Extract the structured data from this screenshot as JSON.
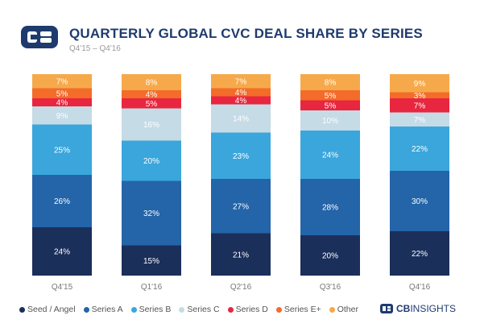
{
  "header": {
    "title": "QUARTERLY GLOBAL CVC DEAL SHARE BY SERIES",
    "subtitle": "Q4'15 – Q4'16",
    "logo_icon": "cb-insights-logo-icon"
  },
  "brand": {
    "prefix": "CB",
    "name": "INSIGHTS"
  },
  "colors": {
    "seed_angel": "#1b2f5b",
    "series_a": "#2464a8",
    "series_b": "#3aa6dc",
    "series_c": "#c5dbe6",
    "series_d": "#e8263f",
    "series_e_plus": "#f36c2a",
    "other": "#f6a94a"
  },
  "chart_data": {
    "type": "bar",
    "stacked": true,
    "title": "QUARTERLY GLOBAL CVC DEAL SHARE BY SERIES",
    "subtitle": "Q4'15 – Q4'16",
    "categories": [
      "Q4'15",
      "Q1'16",
      "Q2'16",
      "Q3'16",
      "Q4'16"
    ],
    "series": [
      {
        "name": "Seed / Angel",
        "color": "#1b2f5b",
        "values": [
          24,
          15,
          21,
          20,
          22
        ],
        "labels": [
          "24%",
          "15%",
          "21%",
          "20%",
          "22%"
        ]
      },
      {
        "name": "Series A",
        "color": "#2464a8",
        "values": [
          26,
          32,
          27,
          28,
          30
        ],
        "labels": [
          "26%",
          "32%",
          "27%",
          "28%",
          "30%"
        ]
      },
      {
        "name": "Series B",
        "color": "#3aa6dc",
        "values": [
          25,
          20,
          23,
          24,
          22
        ],
        "labels": [
          "25%",
          "20%",
          "23%",
          "24%",
          "22%"
        ]
      },
      {
        "name": "Series C",
        "color": "#c5dbe6",
        "values": [
          9,
          16,
          14,
          10,
          7
        ],
        "labels": [
          "9%",
          "16%",
          "14%",
          "10%",
          "7%"
        ]
      },
      {
        "name": "Series D",
        "color": "#e8263f",
        "values": [
          4,
          5,
          4,
          5,
          7
        ],
        "labels": [
          "4%",
          "5%",
          "4%",
          "5%",
          "7%"
        ]
      },
      {
        "name": "Series E+",
        "color": "#f36c2a",
        "values": [
          5,
          4,
          4,
          5,
          3
        ],
        "labels": [
          "5%",
          "4%",
          "4%",
          "5%",
          "3%"
        ]
      },
      {
        "name": "Other",
        "color": "#f6a94a",
        "values": [
          7,
          8,
          7,
          8,
          9
        ],
        "labels": [
          "7%",
          "8%",
          "7%",
          "8%",
          "9%"
        ]
      }
    ],
    "ylim": [
      0,
      100
    ],
    "grid": false,
    "legend_position": "bottom"
  }
}
